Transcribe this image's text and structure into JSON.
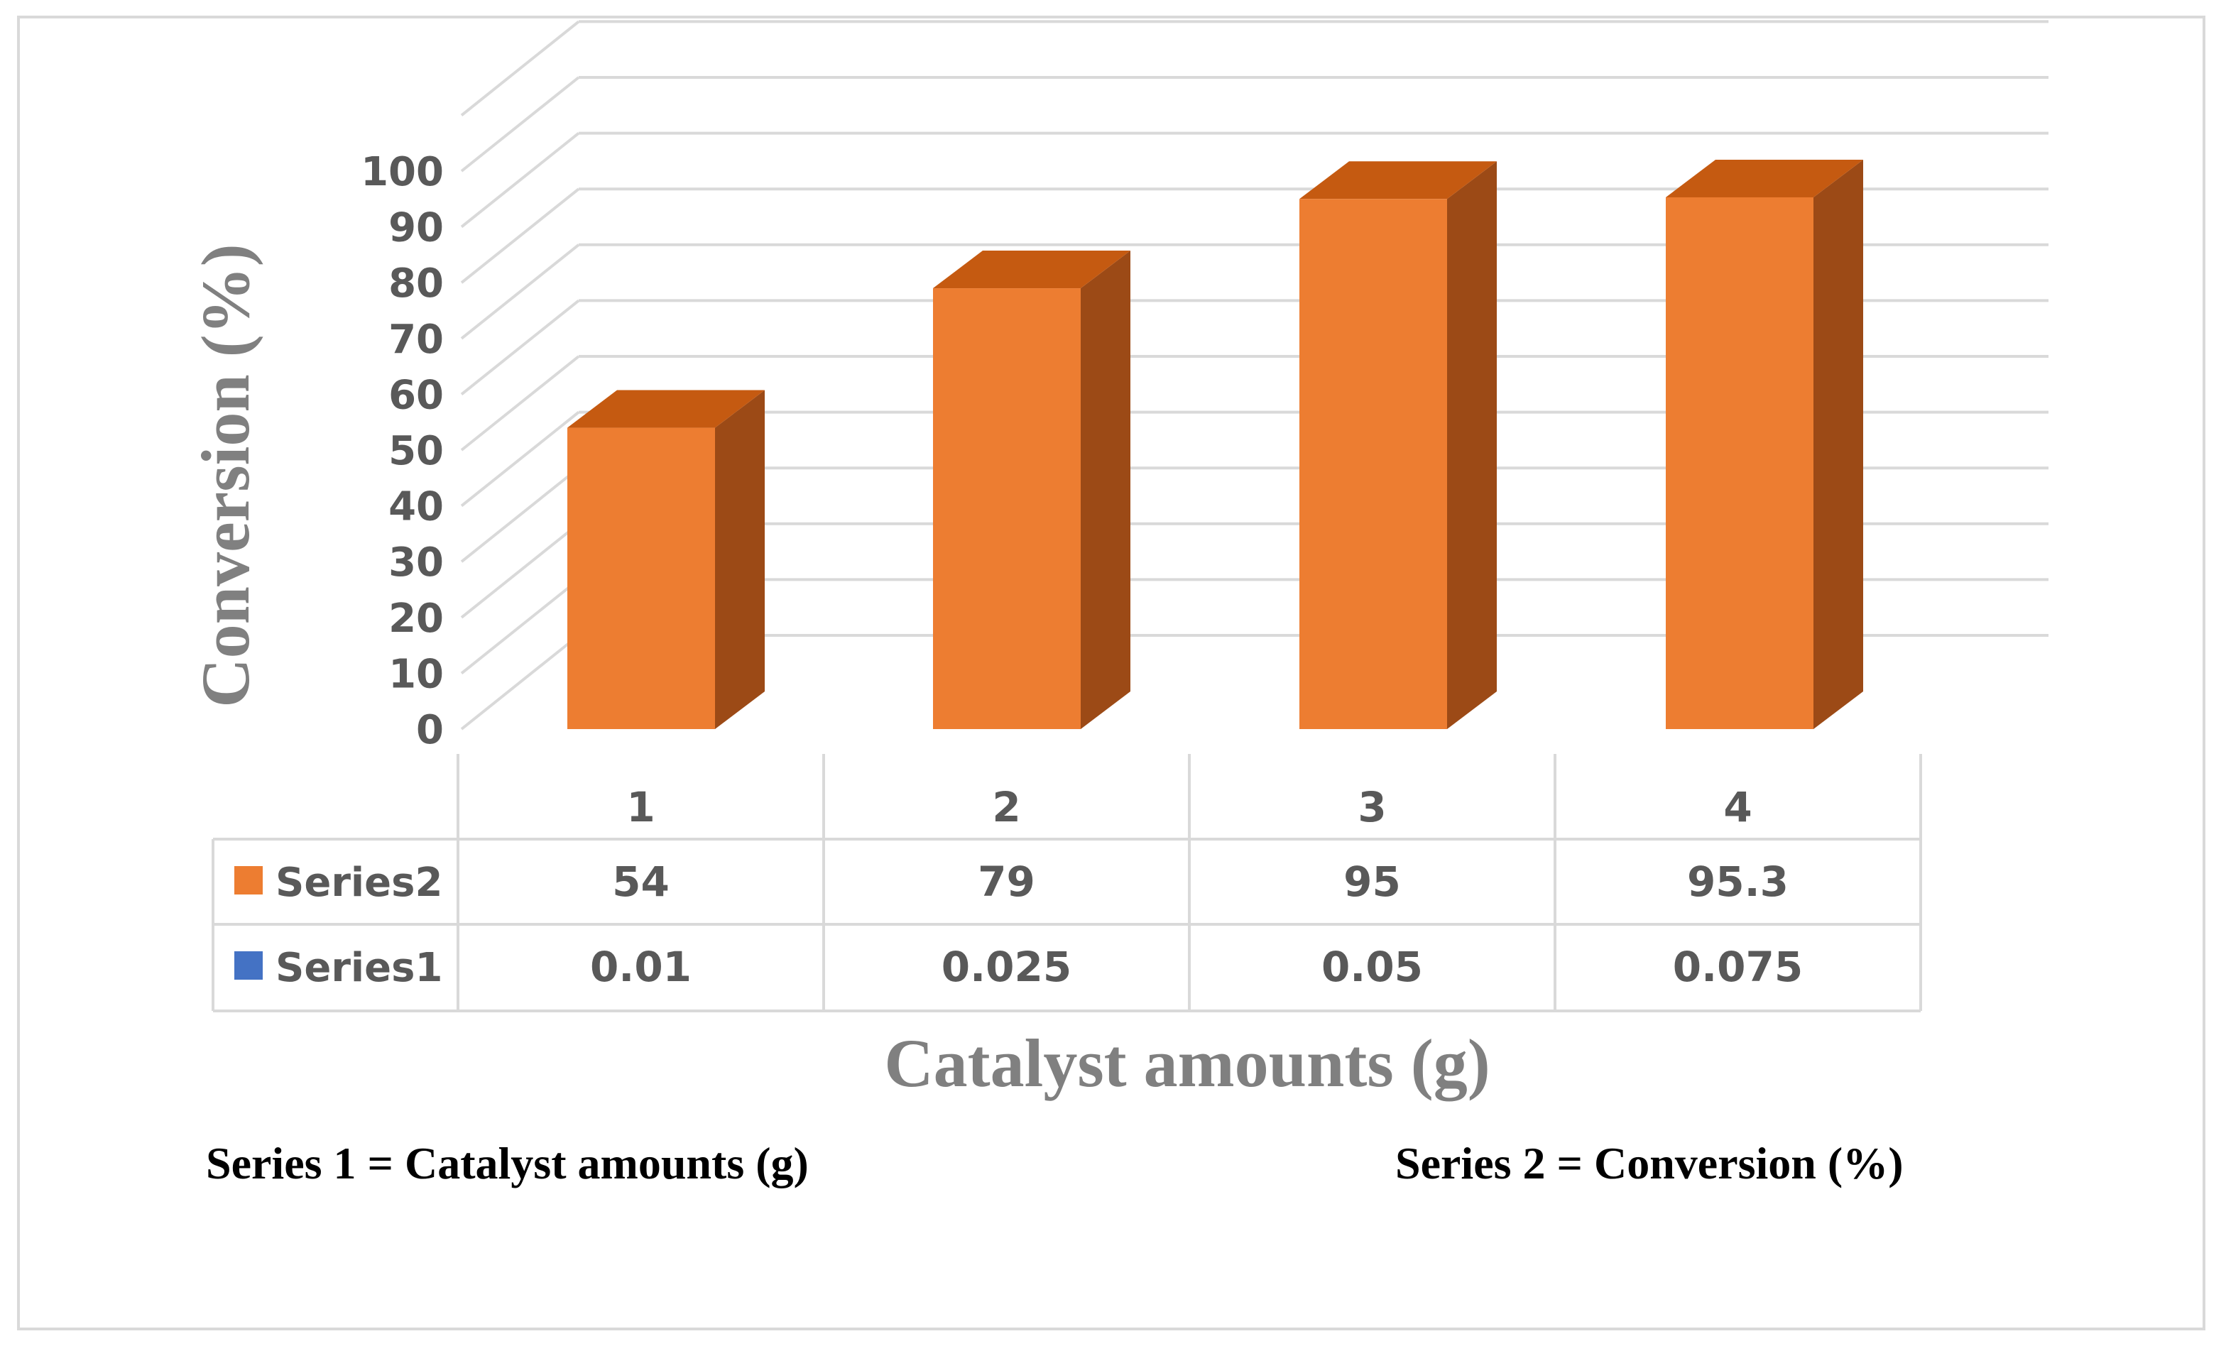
{
  "chart_data": {
    "type": "bar",
    "categories": [
      "1",
      "2",
      "3",
      "4"
    ],
    "series": [
      {
        "name": "Series2",
        "values": [
          54,
          79,
          95,
          95.3
        ],
        "color": "#ed7d31",
        "shown_as_bars": true
      },
      {
        "name": "Series1",
        "values": [
          0.01,
          0.025,
          0.05,
          0.075
        ],
        "color": "#4472c4",
        "shown_as_bars": false
      }
    ],
    "title": "",
    "xlabel": "Catalyst amounts (g)",
    "ylabel": "Conversion (%)",
    "ylim": [
      0,
      110
    ],
    "yticks": [
      0,
      10,
      20,
      30,
      40,
      50,
      60,
      70,
      80,
      90,
      100
    ],
    "grid": true,
    "style": "3d-column-with-data-table",
    "legend": "data-table"
  },
  "notes": {
    "series1": "Series 1 = Catalyst amounts (g)",
    "series2": "Series 2 = Conversion (%)"
  },
  "colors": {
    "bar_front": "#ed7d31",
    "bar_top": "#c55a11",
    "bar_side": "#9c4a16",
    "grid": "#d9d9d9",
    "text": "#595959"
  }
}
